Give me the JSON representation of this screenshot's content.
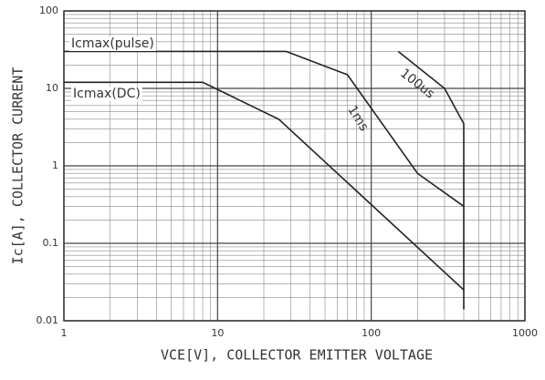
{
  "chart_data": {
    "type": "line",
    "xlabel": "VCE[V], COLLECTOR EMITTER VOLTAGE",
    "ylabel": "Ic[A], COLLECTOR CURRENT",
    "log_x": true,
    "log_y": true,
    "grid": true,
    "minor_grid": true,
    "xlim": [
      1,
      1000
    ],
    "xticks": [
      1,
      10,
      100,
      1000
    ],
    "ylim": [
      0.01,
      100
    ],
    "yticks": [
      0.01,
      0.1,
      1,
      10,
      100
    ],
    "series": [
      {
        "name": "Icmax(pulse)",
        "color": "#222222",
        "x": [
          1,
          28
        ],
        "values": [
          30,
          30
        ]
      },
      {
        "name": "Icmax(DC)",
        "color": "#222222",
        "x": [
          1,
          8,
          25,
          400
        ],
        "values": [
          12,
          12,
          4,
          0.025
        ]
      },
      {
        "name": "1ms",
        "color": "#222222",
        "x": [
          28,
          70,
          200,
          400
        ],
        "values": [
          30,
          15,
          0.8,
          0.3
        ]
      },
      {
        "name": "100us",
        "color": "#222222",
        "x": [
          150,
          300,
          400,
          400
        ],
        "values": [
          30,
          10,
          3.5,
          0.014
        ]
      }
    ]
  }
}
